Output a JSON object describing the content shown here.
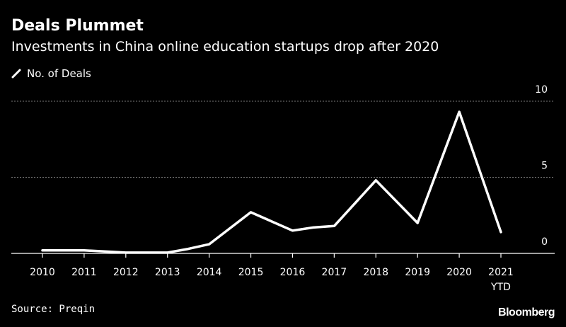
{
  "chart_data": {
    "type": "line",
    "title": "Deals Plummet",
    "subtitle": "Investments in China online education startups drop after 2020",
    "legend": [
      "No. of Deals"
    ],
    "legend_position": "top-left",
    "x": [
      2010,
      2011,
      2012,
      2013,
      2013.5,
      2014,
      2015,
      2016,
      2016.5,
      2017,
      2018,
      2019,
      2020,
      2021
    ],
    "categories": [
      "2010",
      "2011",
      "2012",
      "2013",
      "2014",
      "2015",
      "2016",
      "2017",
      "2018",
      "2019",
      "2020",
      "2021\nYTD"
    ],
    "tick_labels": [
      {
        "value": 2010,
        "line1": "2010",
        "line2": ""
      },
      {
        "value": 2011,
        "line1": "2011",
        "line2": ""
      },
      {
        "value": 2012,
        "line1": "2012",
        "line2": ""
      },
      {
        "value": 2013,
        "line1": "2013",
        "line2": ""
      },
      {
        "value": 2014,
        "line1": "2014",
        "line2": ""
      },
      {
        "value": 2015,
        "line1": "2015",
        "line2": ""
      },
      {
        "value": 2016,
        "line1": "2016",
        "line2": ""
      },
      {
        "value": 2017,
        "line1": "2017",
        "line2": ""
      },
      {
        "value": 2018,
        "line1": "2018",
        "line2": ""
      },
      {
        "value": 2019,
        "line1": "2019",
        "line2": ""
      },
      {
        "value": 2020,
        "line1": "2020",
        "line2": ""
      },
      {
        "value": 2021,
        "line1": "2021",
        "line2": "YTD"
      }
    ],
    "series": [
      {
        "values": [
          0.2,
          0.2,
          0.05,
          0.05,
          0.3,
          0.6,
          2.7,
          1.5,
          1.7,
          1.8,
          4.8,
          2.0,
          9.3,
          1.4
        ]
      }
    ],
    "xlim": [
      2010,
      2021
    ],
    "ylim": [
      0,
      10
    ],
    "yticks": [
      0,
      5,
      10
    ],
    "grid": true,
    "y_axis_side": "right",
    "line_color": "#ffffff",
    "grid_color": "#777777",
    "source": "Source: Preqin",
    "brand": "Bloomberg"
  }
}
